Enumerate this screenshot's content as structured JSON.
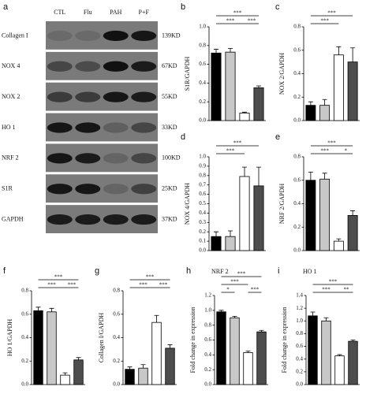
{
  "chart_data": [
    {
      "type": "blot",
      "panel": "a",
      "lanes": [
        "CTL",
        "Flu",
        "PAH",
        "P+F"
      ],
      "rows": [
        {
          "label": "Collagen I",
          "size": "139KD"
        },
        {
          "label": "NOX 4",
          "size": "67KD"
        },
        {
          "label": "NOX 2",
          "size": "55KD"
        },
        {
          "label": "HO 1",
          "size": "33KD"
        },
        {
          "label": "NRF 2",
          "size": "100KD"
        },
        {
          "label": "S1R",
          "size": "25KD"
        },
        {
          "label": "GAPDH",
          "size": "37KD"
        }
      ]
    },
    {
      "type": "bar",
      "panel": "b",
      "ylabel": "S1R/GAPDH",
      "values": [
        0.72,
        0.73,
        0.08,
        0.35
      ],
      "errors": [
        0.04,
        0.04,
        0.01,
        0.02
      ],
      "colors": [
        "#000000",
        "#c8c8c8",
        "#ffffff",
        "#4d4d4d"
      ],
      "ylim": [
        0,
        1.0
      ],
      "yticks": [
        {
          "value": 0,
          "label": "0.0"
        },
        0.2,
        0.4,
        0.6,
        0.8,
        {
          "value": 1.0,
          "label": "1.0"
        }
      ],
      "annotations": [
        "***",
        "***",
        "***"
      ]
    },
    {
      "type": "bar",
      "panel": "c",
      "ylabel": "NOX 2/GAPDH",
      "values": [
        0.13,
        0.13,
        0.56,
        0.5
      ],
      "errors": [
        0.03,
        0.05,
        0.07,
        0.12
      ],
      "colors": [
        "#000000",
        "#c8c8c8",
        "#ffffff",
        "#4d4d4d"
      ],
      "ylim": [
        0,
        0.8
      ],
      "yticks": [
        {
          "value": 0,
          "label": "0.0"
        },
        0.2,
        0.4,
        0.6,
        0.8
      ],
      "annotations": [
        "***",
        "***"
      ]
    },
    {
      "type": "bar",
      "panel": "d",
      "ylabel": "NOX 4/GAPDH",
      "values": [
        0.15,
        0.15,
        0.79,
        0.69
      ],
      "errors": [
        0.05,
        0.06,
        0.1,
        0.2
      ],
      "colors": [
        "#000000",
        "#c8c8c8",
        "#ffffff",
        "#4d4d4d"
      ],
      "ylim": [
        0,
        1.0
      ],
      "yticks": [
        {
          "value": 0,
          "label": "0.0"
        },
        0.1,
        0.2,
        0.3,
        0.4,
        0.5,
        0.6,
        0.7,
        0.8,
        0.9,
        {
          "value": 1.0,
          "label": "1.0"
        }
      ],
      "annotations": [
        "***",
        "***"
      ]
    },
    {
      "type": "bar",
      "panel": "e",
      "ylabel": "NRF 2/GAPDH",
      "values": [
        0.6,
        0.61,
        0.08,
        0.3
      ],
      "errors": [
        0.07,
        0.05,
        0.02,
        0.04
      ],
      "colors": [
        "#000000",
        "#c8c8c8",
        "#ffffff",
        "#4d4d4d"
      ],
      "ylim": [
        0,
        0.8
      ],
      "yticks": [
        {
          "value": 0,
          "label": "0.0"
        },
        0.2,
        0.4,
        0.6,
        0.8
      ],
      "annotations": [
        "***",
        "***",
        "*"
      ]
    },
    {
      "type": "bar",
      "panel": "f",
      "ylabel": "HO 1/GAPDH",
      "values": [
        0.63,
        0.62,
        0.08,
        0.21
      ],
      "errors": [
        0.03,
        0.03,
        0.02,
        0.02
      ],
      "colors": [
        "#000000",
        "#c8c8c8",
        "#ffffff",
        "#4d4d4d"
      ],
      "ylim": [
        0,
        0.8
      ],
      "yticks": [
        {
          "value": 0,
          "label": "0.0"
        },
        0.2,
        0.4,
        0.6,
        0.8
      ],
      "annotations": [
        "***",
        "***",
        "***"
      ]
    },
    {
      "type": "bar",
      "panel": "g",
      "ylabel": "Collagen I/GAPDH",
      "values": [
        0.13,
        0.14,
        0.53,
        0.31
      ],
      "errors": [
        0.02,
        0.03,
        0.06,
        0.03
      ],
      "colors": [
        "#000000",
        "#c8c8c8",
        "#ffffff",
        "#4d4d4d"
      ],
      "ylim": [
        0,
        0.8
      ],
      "yticks": [
        {
          "value": 0,
          "label": "0.0"
        },
        0.2,
        0.4,
        0.6,
        0.8
      ],
      "annotations": [
        "***",
        "***",
        "***"
      ]
    },
    {
      "type": "bar",
      "panel": "h",
      "title": "NRF 2",
      "ylabel": "Fold change in expression",
      "values": [
        0.98,
        0.9,
        0.43,
        0.71
      ],
      "errors": [
        0.02,
        0.02,
        0.02,
        0.02
      ],
      "colors": [
        "#000000",
        "#c8c8c8",
        "#ffffff",
        "#4d4d4d"
      ],
      "ylim": [
        0,
        1.2
      ],
      "yticks": [
        {
          "value": 0,
          "label": "0.0"
        },
        0.2,
        0.4,
        0.6,
        0.8,
        {
          "value": 1.0,
          "label": "1.0"
        },
        1.2
      ],
      "annotations": [
        "***",
        "***",
        "*",
        "***"
      ]
    },
    {
      "type": "bar",
      "panel": "i",
      "title": "HO 1",
      "ylabel": "Fold change in expression",
      "values": [
        1.08,
        1.0,
        0.45,
        0.68
      ],
      "errors": [
        0.06,
        0.05,
        0.02,
        0.02
      ],
      "colors": [
        "#000000",
        "#c8c8c8",
        "#ffffff",
        "#4d4d4d"
      ],
      "ylim": [
        0,
        1.4
      ],
      "yticks": [
        {
          "value": 0,
          "label": "0.0"
        },
        0.2,
        0.4,
        0.6,
        0.8,
        {
          "value": 1.0,
          "label": "1.0"
        },
        1.2,
        1.4
      ],
      "annotations": [
        "***",
        "***",
        "**"
      ]
    }
  ]
}
